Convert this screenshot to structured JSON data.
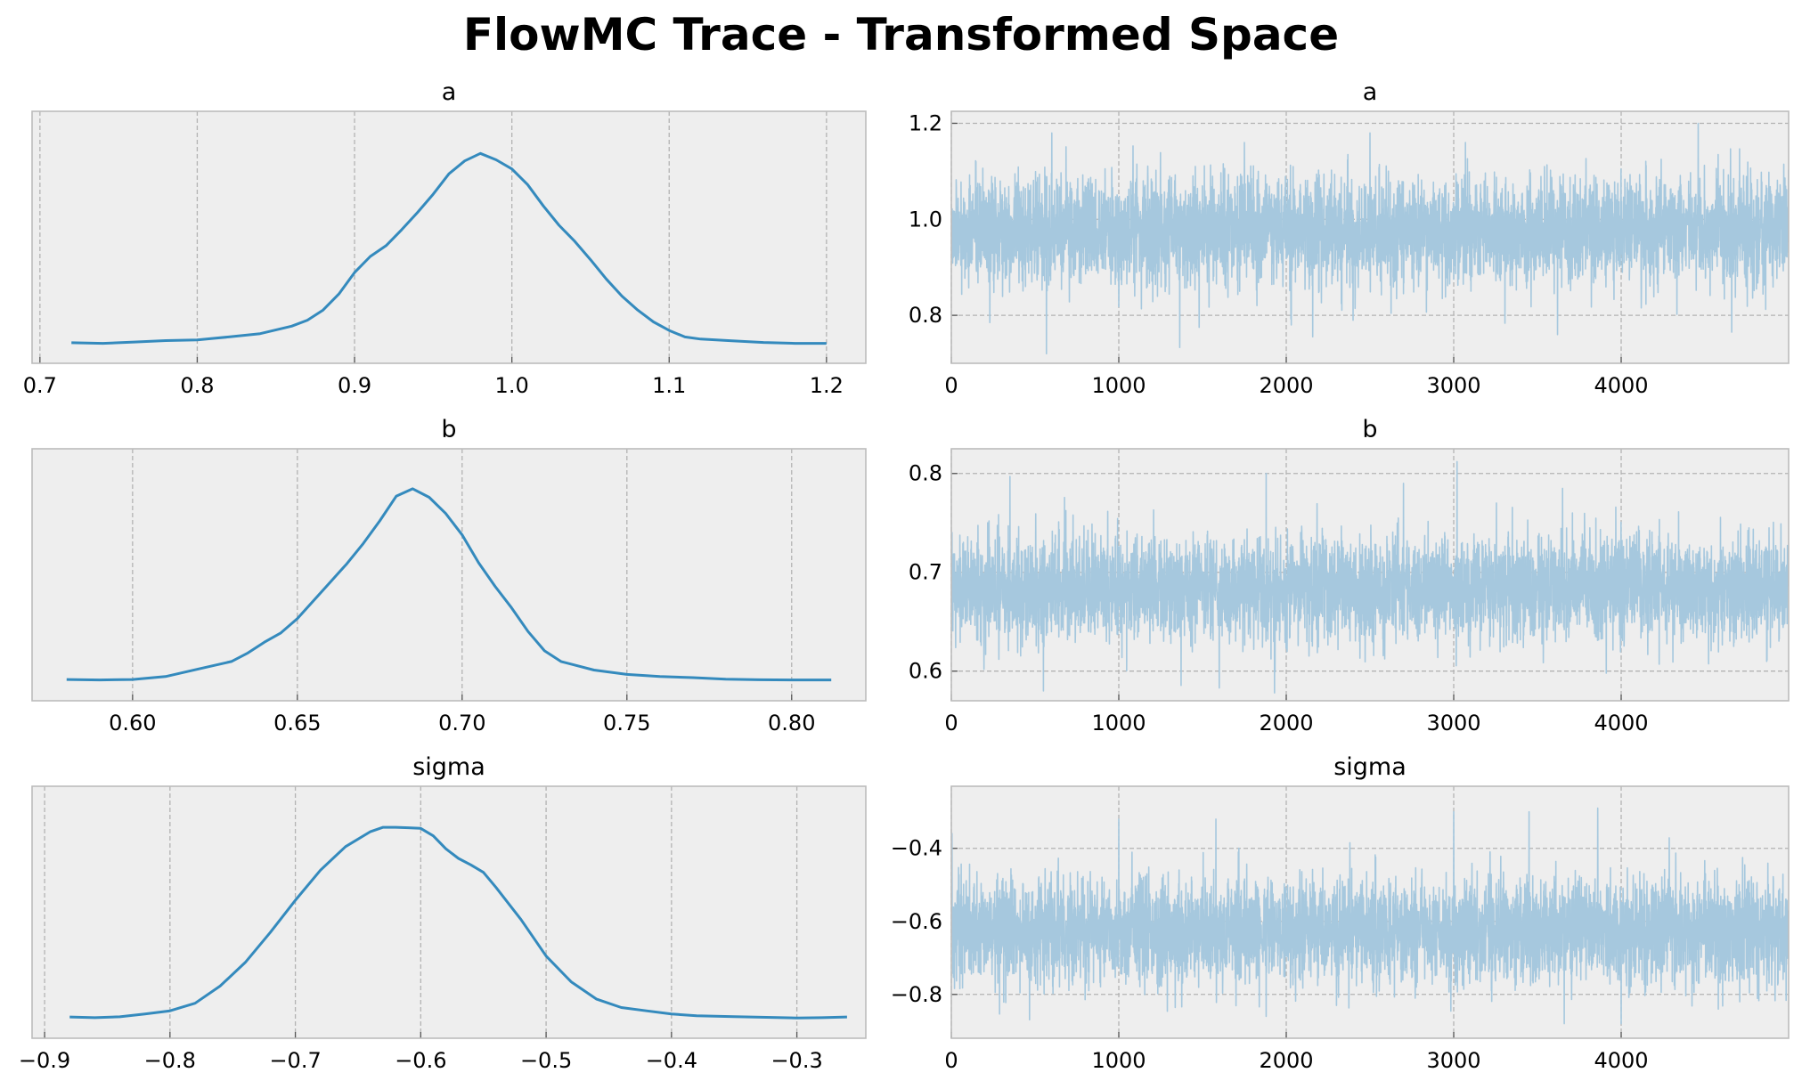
{
  "figure": {
    "title": "FlowMC Trace - Transformed Space"
  },
  "style": {
    "panel_bg": "#eeeeee",
    "frame": "#bcbcbc",
    "grid": "#b3b3b3",
    "kde_color": "#348abd",
    "trace_color": "#a6c8de",
    "text": "#000000"
  },
  "chart_data": [
    {
      "type": "line",
      "kind": "kde",
      "title": "a",
      "xlim": [
        0.695,
        1.225
      ],
      "xticks": [
        0.7,
        0.8,
        0.9,
        1.0,
        1.1,
        1.2
      ],
      "xticklabels": [
        "0.7",
        "0.8",
        "0.9",
        "1.0",
        "1.1",
        "1.2"
      ],
      "x": [
        0.72,
        0.74,
        0.76,
        0.78,
        0.8,
        0.82,
        0.84,
        0.86,
        0.87,
        0.88,
        0.89,
        0.9,
        0.91,
        0.92,
        0.93,
        0.94,
        0.95,
        0.96,
        0.97,
        0.98,
        0.99,
        1.0,
        1.01,
        1.02,
        1.03,
        1.04,
        1.05,
        1.06,
        1.07,
        1.08,
        1.09,
        1.1,
        1.11,
        1.12,
        1.14,
        1.16,
        1.18,
        1.2
      ],
      "y": [
        0.013,
        0.01,
        0.016,
        0.023,
        0.026,
        0.04,
        0.055,
        0.09,
        0.118,
        0.165,
        0.24,
        0.34,
        0.415,
        0.465,
        0.54,
        0.62,
        0.705,
        0.8,
        0.86,
        0.895,
        0.865,
        0.823,
        0.75,
        0.65,
        0.56,
        0.485,
        0.4,
        0.31,
        0.23,
        0.165,
        0.11,
        0.07,
        0.04,
        0.03,
        0.022,
        0.014,
        0.01,
        0.01
      ]
    },
    {
      "type": "line",
      "kind": "trace",
      "title": "a",
      "xlim": [
        0,
        5000
      ],
      "ylim": [
        0.7,
        1.225
      ],
      "xticks": [
        0,
        1000,
        2000,
        3000,
        4000
      ],
      "xticklabels": [
        "0",
        "1000",
        "2000",
        "3000",
        "4000"
      ],
      "yticks": [
        0.8,
        1.0,
        1.2
      ],
      "yticklabels": [
        "0.8",
        "1.0",
        "1.2"
      ],
      "center": 0.975,
      "spread": 0.055,
      "n": 5000,
      "spikes": [
        [
          568,
          0.72
        ],
        [
          600,
          1.18
        ],
        [
          2500,
          1.18
        ],
        [
          4460,
          1.2
        ],
        [
          3620,
          0.76
        ],
        [
          4660,
          0.765
        ],
        [
          1480,
          0.775
        ],
        [
          2030,
          0.78
        ],
        [
          230,
          0.785
        ],
        [
          1750,
          1.16
        ],
        [
          3070,
          1.16
        ]
      ]
    },
    {
      "type": "line",
      "kind": "kde",
      "title": "b",
      "xlim": [
        0.5695,
        0.8225
      ],
      "xticks": [
        0.6,
        0.65,
        0.7,
        0.75,
        0.8
      ],
      "xticklabels": [
        "0.60",
        "0.65",
        "0.70",
        "0.75",
        "0.80"
      ],
      "x": [
        0.58,
        0.59,
        0.6,
        0.61,
        0.62,
        0.63,
        0.635,
        0.64,
        0.645,
        0.65,
        0.655,
        0.66,
        0.665,
        0.67,
        0.675,
        0.68,
        0.685,
        0.69,
        0.695,
        0.7,
        0.705,
        0.71,
        0.715,
        0.72,
        0.725,
        0.73,
        0.74,
        0.75,
        0.76,
        0.77,
        0.78,
        0.79,
        0.8,
        0.812
      ],
      "y": [
        0.016,
        0.014,
        0.016,
        0.03,
        0.065,
        0.1,
        0.14,
        0.19,
        0.233,
        0.3,
        0.385,
        0.47,
        0.555,
        0.65,
        0.755,
        0.87,
        0.905,
        0.865,
        0.79,
        0.69,
        0.56,
        0.45,
        0.35,
        0.24,
        0.15,
        0.1,
        0.06,
        0.04,
        0.03,
        0.025,
        0.018,
        0.015,
        0.014,
        0.014
      ]
    },
    {
      "type": "line",
      "kind": "trace",
      "title": "b",
      "xlim": [
        0,
        5000
      ],
      "ylim": [
        0.57,
        0.825
      ],
      "xticks": [
        0,
        1000,
        2000,
        3000,
        4000
      ],
      "xticklabels": [
        "0",
        "1000",
        "2000",
        "3000",
        "4000"
      ],
      "yticks": [
        0.6,
        0.7,
        0.8
      ],
      "yticklabels": [
        "0.6",
        "0.7",
        "0.8"
      ],
      "center": 0.683,
      "spread": 0.026,
      "n": 5000,
      "spikes": [
        [
          3020,
          0.812
        ],
        [
          1880,
          0.8
        ],
        [
          350,
          0.797
        ],
        [
          550,
          0.58
        ],
        [
          1930,
          0.578
        ],
        [
          1600,
          0.583
        ],
        [
          2700,
          0.79
        ],
        [
          3650,
          0.785
        ]
      ]
    },
    {
      "type": "line",
      "kind": "kde",
      "title": "sigma",
      "xlim": [
        -0.91,
        -0.245
      ],
      "xticks": [
        -0.9,
        -0.8,
        -0.7,
        -0.6,
        -0.5,
        -0.4,
        -0.3
      ],
      "xticklabels": [
        "−0.9",
        "−0.8",
        "−0.7",
        "−0.6",
        "−0.5",
        "−0.4",
        "−0.3"
      ],
      "x": [
        -0.88,
        -0.86,
        -0.84,
        -0.82,
        -0.8,
        -0.78,
        -0.76,
        -0.74,
        -0.72,
        -0.7,
        -0.68,
        -0.66,
        -0.64,
        -0.63,
        -0.62,
        -0.61,
        -0.6,
        -0.59,
        -0.58,
        -0.57,
        -0.56,
        -0.55,
        -0.54,
        -0.52,
        -0.5,
        -0.48,
        -0.46,
        -0.44,
        -0.42,
        -0.4,
        -0.38,
        -0.35,
        -0.32,
        -0.3,
        -0.28,
        -0.26
      ],
      "y": [
        0.016,
        0.013,
        0.017,
        0.03,
        0.045,
        0.08,
        0.16,
        0.27,
        0.41,
        0.56,
        0.7,
        0.81,
        0.88,
        0.9,
        0.9,
        0.898,
        0.895,
        0.86,
        0.8,
        0.755,
        0.725,
        0.69,
        0.62,
        0.47,
        0.3,
        0.18,
        0.1,
        0.06,
        0.045,
        0.03,
        0.022,
        0.018,
        0.014,
        0.011,
        0.013,
        0.016
      ]
    },
    {
      "type": "line",
      "kind": "trace",
      "title": "sigma",
      "xlim": [
        0,
        5000
      ],
      "ylim": [
        -0.92,
        -0.23
      ],
      "xticks": [
        0,
        1000,
        2000,
        3000,
        4000
      ],
      "xticklabels": [
        "0",
        "1000",
        "2000",
        "3000",
        "4000"
      ],
      "yticks": [
        -0.8,
        -0.6,
        -0.4
      ],
      "yticklabels": [
        "−0.8",
        "−0.6",
        "−0.4"
      ],
      "center": -0.625,
      "spread": 0.07,
      "n": 5000,
      "spikes": [
        [
          3860,
          -0.29
        ],
        [
          1000,
          -0.32
        ],
        [
          1580,
          -0.32
        ],
        [
          3450,
          -0.3
        ],
        [
          3660,
          -0.88
        ],
        [
          4000,
          -0.88
        ],
        [
          1880,
          -0.86
        ],
        [
          4580,
          -0.84
        ],
        [
          2300,
          -0.83
        ],
        [
          3000,
          -0.3
        ]
      ]
    }
  ]
}
